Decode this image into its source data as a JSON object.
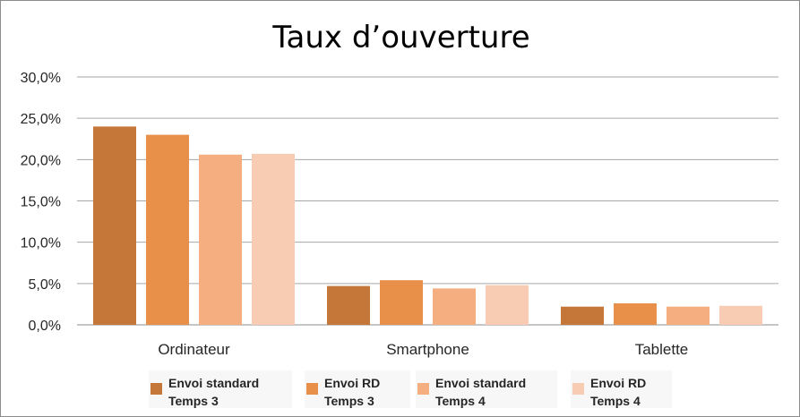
{
  "chart_data": {
    "type": "bar",
    "title": "Taux d’ouverture",
    "categories": [
      "Ordinateur",
      "Smartphone",
      "Tablette"
    ],
    "series": [
      {
        "name": "Envoi standard Temps 3",
        "legend_lines": [
          "Envoi standard",
          "Temps 3"
        ],
        "color": "#c5773a",
        "values": [
          24.0,
          4.7,
          2.2
        ]
      },
      {
        "name": "Envoi RD Temps 3",
        "legend_lines": [
          "Envoi RD",
          "Temps 3"
        ],
        "color": "#e8904a",
        "values": [
          23.0,
          5.4,
          2.6
        ]
      },
      {
        "name": "Envoi standard Temps 4",
        "legend_lines": [
          "Envoi standard",
          "Temps 4"
        ],
        "color": "#f5ae80",
        "values": [
          20.6,
          4.4,
          2.2
        ]
      },
      {
        "name": "Envoi RD Temps 4",
        "legend_lines": [
          "Envoi RD",
          "Temps 4"
        ],
        "color": "#f8cbb3",
        "values": [
          20.7,
          4.8,
          2.3
        ]
      }
    ],
    "y_ticks": [
      "0,0%",
      "5,0%",
      "10,0%",
      "15,0%",
      "20,0%",
      "25,0%",
      "30,0%"
    ],
    "ylim": [
      0,
      30
    ],
    "ytick_step": 5,
    "grid": true,
    "legend_position": "bottom"
  }
}
